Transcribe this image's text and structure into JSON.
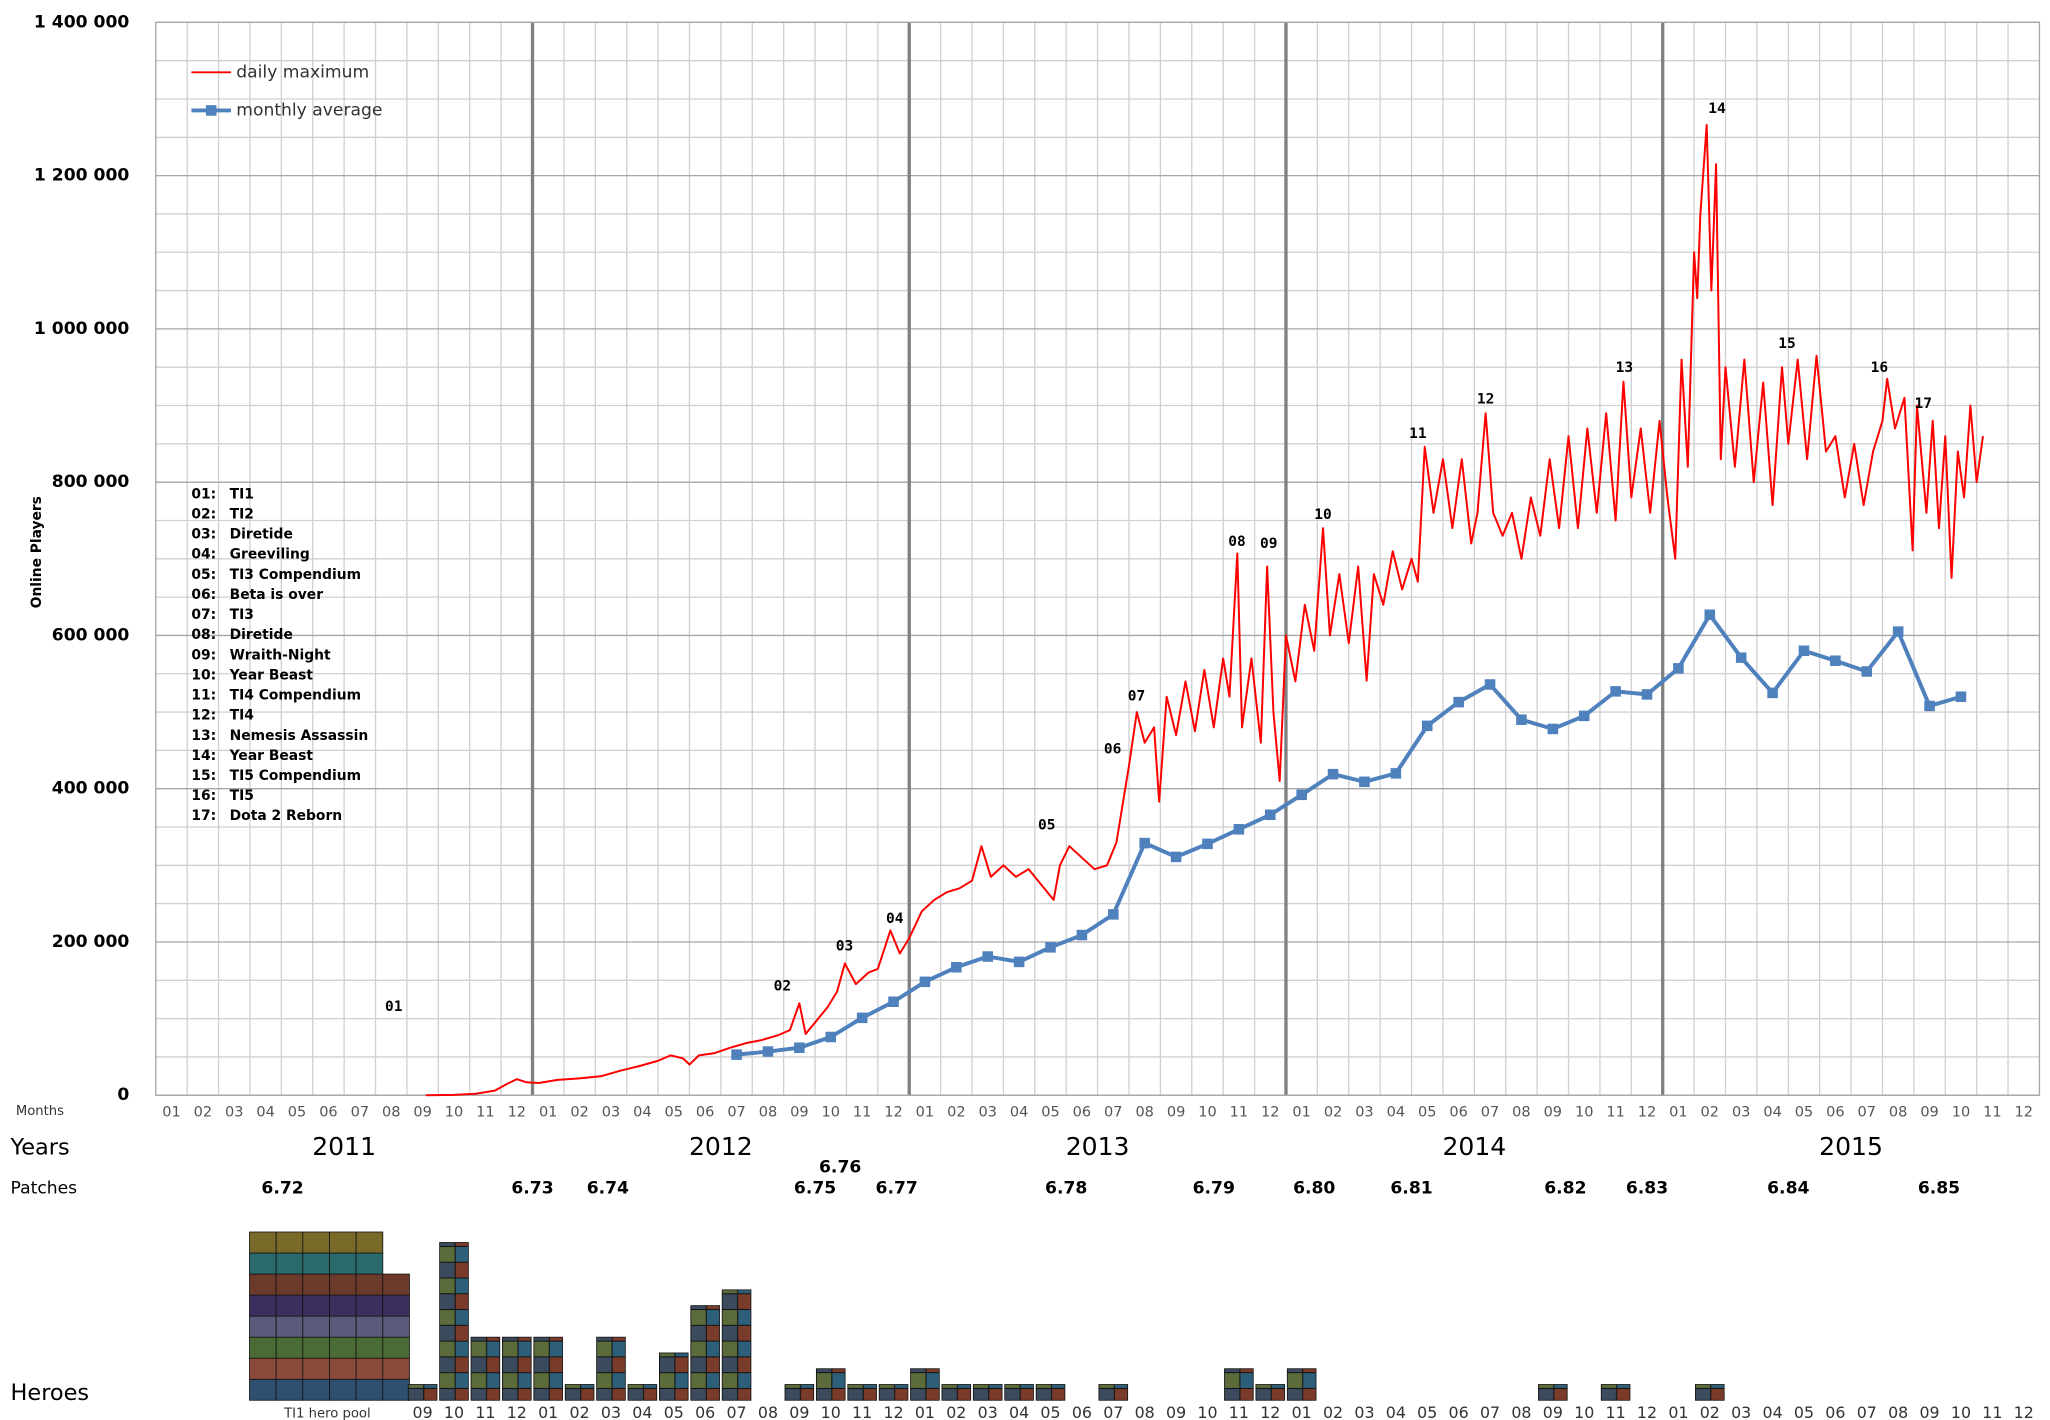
{
  "chart_data": {
    "type": "line",
    "y_label": "Online Players",
    "month_axis_label": "Months",
    "years_label": "Years",
    "patches_label": "Patches",
    "legend": "upper left",
    "grid": true,
    "xlim": [
      0,
      60
    ],
    "ylim": [
      0,
      1400000
    ],
    "yticks": [
      0,
      {
        "value": 200000,
        "label": "200 000"
      },
      {
        "value": 400000,
        "label": "400 000"
      },
      {
        "value": 600000,
        "label": "600 000"
      },
      {
        "value": 800000,
        "label": "800 000"
      },
      {
        "value": 1000000,
        "label": "1 000 000"
      },
      {
        "value": 1200000,
        "label": "1 200 000"
      },
      {
        "value": 1400000,
        "label": "1 400 000"
      }
    ],
    "yminor": [
      50000,
      100000,
      150000,
      250000,
      300000,
      350000,
      450000,
      500000,
      550000,
      650000,
      700000,
      750000,
      850000,
      900000,
      950000,
      1050000,
      1100000,
      1150000,
      1250000,
      1300000,
      1350000
    ],
    "month_labels": [
      "01",
      "02",
      "03",
      "04",
      "05",
      "06",
      "07",
      "08",
      "09",
      "10",
      "11",
      "12",
      "01",
      "02",
      "03",
      "04",
      "05",
      "06",
      "07",
      "08",
      "09",
      "10",
      "11",
      "12",
      "01",
      "02",
      "03",
      "04",
      "05",
      "06",
      "07",
      "08",
      "09",
      "10",
      "11",
      "12",
      "01",
      "02",
      "03",
      "04",
      "05",
      "06",
      "07",
      "08",
      "09",
      "10",
      "11",
      "12",
      "01",
      "02",
      "03",
      "04",
      "05",
      "06",
      "07",
      "08",
      "09",
      "10",
      "11",
      "12"
    ],
    "years": [
      2011,
      2012,
      2013,
      2014,
      2015
    ],
    "year_lines": [
      12,
      24,
      36,
      48
    ],
    "series": [
      {
        "name": "daily maximum",
        "color": "#ff0000",
        "x": [
          8.6,
          9.5,
          10.2,
          10.8,
          11.2,
          11.5,
          11.8,
          12.2,
          12.8,
          13.5,
          14.2,
          14.8,
          15.4,
          16.0,
          16.4,
          16.8,
          17.0,
          17.3,
          17.8,
          18.3,
          18.8,
          19.3,
          19.8,
          20.2,
          20.5,
          20.7,
          21.0,
          21.4,
          21.7,
          21.95,
          22.3,
          22.7,
          23.0,
          23.4,
          23.7,
          24.0,
          24.4,
          24.8,
          25.2,
          25.6,
          26.0,
          26.3,
          26.6,
          27.0,
          27.4,
          27.8,
          28.2,
          28.6,
          28.8,
          29.1,
          29.5,
          29.9,
          30.3,
          30.6,
          31.0,
          31.25,
          31.5,
          31.8,
          31.96,
          32.2,
          32.5,
          32.8,
          33.1,
          33.4,
          33.7,
          34.0,
          34.2,
          34.45,
          34.6,
          34.9,
          35.2,
          35.4,
          35.6,
          35.8,
          36.0,
          36.3,
          36.6,
          36.9,
          37.18,
          37.4,
          37.7,
          38.0,
          38.3,
          38.57,
          38.8,
          39.1,
          39.4,
          39.7,
          40.0,
          40.2,
          40.42,
          40.7,
          41.0,
          41.3,
          41.6,
          41.9,
          42.1,
          42.36,
          42.6,
          42.9,
          43.2,
          43.5,
          43.8,
          44.1,
          44.4,
          44.7,
          45.0,
          45.3,
          45.6,
          45.9,
          46.2,
          46.5,
          46.75,
          47.0,
          47.3,
          47.6,
          47.9,
          48.15,
          48.4,
          48.6,
          48.8,
          49.0,
          49.1,
          49.2,
          49.4,
          49.55,
          49.7,
          49.85,
          50.0,
          50.3,
          50.6,
          50.9,
          51.2,
          51.5,
          51.8,
          52.0,
          52.3,
          52.6,
          52.9,
          53.2,
          53.5,
          53.8,
          54.1,
          54.4,
          54.7,
          55.0,
          55.15,
          55.4,
          55.7,
          55.96,
          56.1,
          56.4,
          56.6,
          56.8,
          57.0,
          57.2,
          57.4,
          57.6,
          57.8,
          58.0,
          58.2
        ],
        "values": [
          0,
          500,
          2000,
          6000,
          15000,
          21000,
          17000,
          16000,
          20000,
          22000,
          25000,
          32000,
          38000,
          45000,
          52000,
          48000,
          40000,
          52000,
          55000,
          62000,
          68000,
          72000,
          78000,
          85000,
          120000,
          80000,
          95000,
          115000,
          135000,
          172000,
          145000,
          160000,
          165000,
          215000,
          185000,
          205000,
          240000,
          255000,
          265000,
          270000,
          280000,
          325000,
          285000,
          300000,
          285000,
          295000,
          275000,
          255000,
          300000,
          325000,
          310000,
          295000,
          300000,
          330000,
          430000,
          500000,
          460000,
          480000,
          383000,
          520000,
          470000,
          540000,
          475000,
          555000,
          480000,
          570000,
          520000,
          707000,
          480000,
          570000,
          460000,
          690000,
          500000,
          410000,
          600000,
          540000,
          640000,
          580000,
          740000,
          600000,
          680000,
          590000,
          690000,
          541000,
          680000,
          640000,
          710000,
          660000,
          700000,
          670000,
          846000,
          760000,
          830000,
          740000,
          830000,
          720000,
          760000,
          890000,
          760000,
          730000,
          760000,
          700000,
          780000,
          730000,
          830000,
          740000,
          860000,
          740000,
          870000,
          760000,
          890000,
          750000,
          931000,
          780000,
          870000,
          760000,
          880000,
          780000,
          700000,
          960000,
          820000,
          1100000,
          1040000,
          1150000,
          1266000,
          1050000,
          1215000,
          830000,
          950000,
          820000,
          960000,
          800000,
          930000,
          770000,
          950000,
          850000,
          960000,
          830000,
          965000,
          840000,
          860000,
          780000,
          850000,
          770000,
          840000,
          880000,
          935000,
          870000,
          910000,
          711000,
          900000,
          760000,
          880000,
          740000,
          860000,
          675000,
          840000,
          780000,
          900000,
          800000,
          860000
        ]
      },
      {
        "name": "monthly average",
        "color": "#4f81bd",
        "x": [
          18.5,
          19.5,
          20.5,
          21.5,
          22.5,
          23.5,
          24.5,
          25.5,
          26.5,
          27.5,
          28.5,
          29.5,
          30.5,
          31.5,
          32.5,
          33.5,
          34.5,
          35.5,
          36.5,
          37.5,
          38.5,
          39.5,
          40.5,
          41.5,
          42.5,
          43.5,
          44.5,
          45.5,
          46.5,
          47.5,
          48.5,
          49.5,
          50.5,
          51.5,
          52.5,
          53.5,
          54.5,
          55.5,
          56.5,
          57.5
        ],
        "values": [
          53000,
          57000,
          62000,
          76000,
          101000,
          122000,
          148000,
          167000,
          181000,
          174000,
          193000,
          209000,
          236000,
          329000,
          311000,
          328000,
          347000,
          366000,
          392000,
          419000,
          409000,
          420000,
          482000,
          513000,
          536000,
          490000,
          478000,
          495000,
          527000,
          523000,
          557000,
          627000,
          571000,
          525000,
          580000,
          567000,
          553000,
          605000,
          508000,
          520000
        ]
      }
    ],
    "annotations": [
      {
        "label": "01",
        "x": 7.58,
        "y": 115000
      },
      {
        "label": "02",
        "x": 19.96,
        "y": 142000
      },
      {
        "label": "03",
        "x": 21.94,
        "y": 194000
      },
      {
        "label": "04",
        "x": 23.54,
        "y": 230000
      },
      {
        "label": "05",
        "x": 28.38,
        "y": 352000
      },
      {
        "label": "06",
        "x": 30.48,
        "y": 451000
      },
      {
        "label": "07",
        "x": 31.24,
        "y": 520000
      },
      {
        "label": "08",
        "x": 34.44,
        "y": 722000
      },
      {
        "label": "09",
        "x": 35.45,
        "y": 719000
      },
      {
        "label": "10",
        "x": 37.18,
        "y": 757000
      },
      {
        "label": "11",
        "x": 40.2,
        "y": 863000
      },
      {
        "label": "12",
        "x": 42.36,
        "y": 908000
      },
      {
        "label": "13",
        "x": 46.78,
        "y": 949000
      },
      {
        "label": "14",
        "x": 49.73,
        "y": 1287000
      },
      {
        "label": "15",
        "x": 51.96,
        "y": 980000
      },
      {
        "label": "16",
        "x": 54.9,
        "y": 949000
      },
      {
        "label": "17",
        "x": 56.3,
        "y": 902000
      }
    ],
    "events": [
      {
        "code": "01:",
        "name": "TI1"
      },
      {
        "code": "02:",
        "name": "TI2"
      },
      {
        "code": "03:",
        "name": "Diretide"
      },
      {
        "code": "04:",
        "name": "Greeviling"
      },
      {
        "code": "05:",
        "name": "TI3 Compendium"
      },
      {
        "code": "06:",
        "name": "Beta is over"
      },
      {
        "code": "07:",
        "name": "TI3"
      },
      {
        "code": "08:",
        "name": "Diretide"
      },
      {
        "code": "09:",
        "name": "Wraith-Night"
      },
      {
        "code": "10:",
        "name": "Year Beast"
      },
      {
        "code": "11:",
        "name": "TI4 Compendium"
      },
      {
        "code": "12:",
        "name": "TI4"
      },
      {
        "code": "13:",
        "name": "Nemesis Assassin"
      },
      {
        "code": "14:",
        "name": "Year Beast"
      },
      {
        "code": "15:",
        "name": "TI5 Compendium"
      },
      {
        "code": "16:",
        "name": "TI5"
      },
      {
        "code": "17:",
        "name": "Dota 2 Reborn"
      }
    ],
    "patches": [
      {
        "label": "6.72",
        "x": 4.04
      },
      {
        "label": "6.73",
        "x": 12.0
      },
      {
        "label": "6.74",
        "x": 14.4
      },
      {
        "label": "6.75",
        "x": 21.0
      },
      {
        "label": "6.76",
        "x": 21.8
      },
      {
        "label": "6.77",
        "x": 23.6
      },
      {
        "label": "6.78",
        "x": 29.0
      },
      {
        "label": "6.79",
        "x": 33.7
      },
      {
        "label": "6.80",
        "x": 36.9
      },
      {
        "label": "6.81",
        "x": 40.0
      },
      {
        "label": "6.82",
        "x": 44.9
      },
      {
        "label": "6.83",
        "x": 47.5
      },
      {
        "label": "6.84",
        "x": 52.0
      },
      {
        "label": "6.85",
        "x": 56.8
      }
    ],
    "heroes": {
      "label": "Heroes",
      "pool": 46,
      "pool_label": "TI1 hero pool",
      "months": [
        8,
        9,
        10,
        11,
        12,
        13,
        14,
        15,
        16,
        17,
        18,
        20,
        21,
        22,
        23,
        24,
        25,
        26,
        27,
        28,
        30,
        34,
        35,
        36,
        44,
        46,
        49
      ],
      "counts": [
        2,
        20,
        8,
        8,
        8,
        2,
        8,
        2,
        6,
        12,
        14,
        2,
        4,
        2,
        2,
        4,
        2,
        2,
        2,
        2,
        2,
        4,
        2,
        4,
        2,
        2,
        2
      ]
    }
  }
}
